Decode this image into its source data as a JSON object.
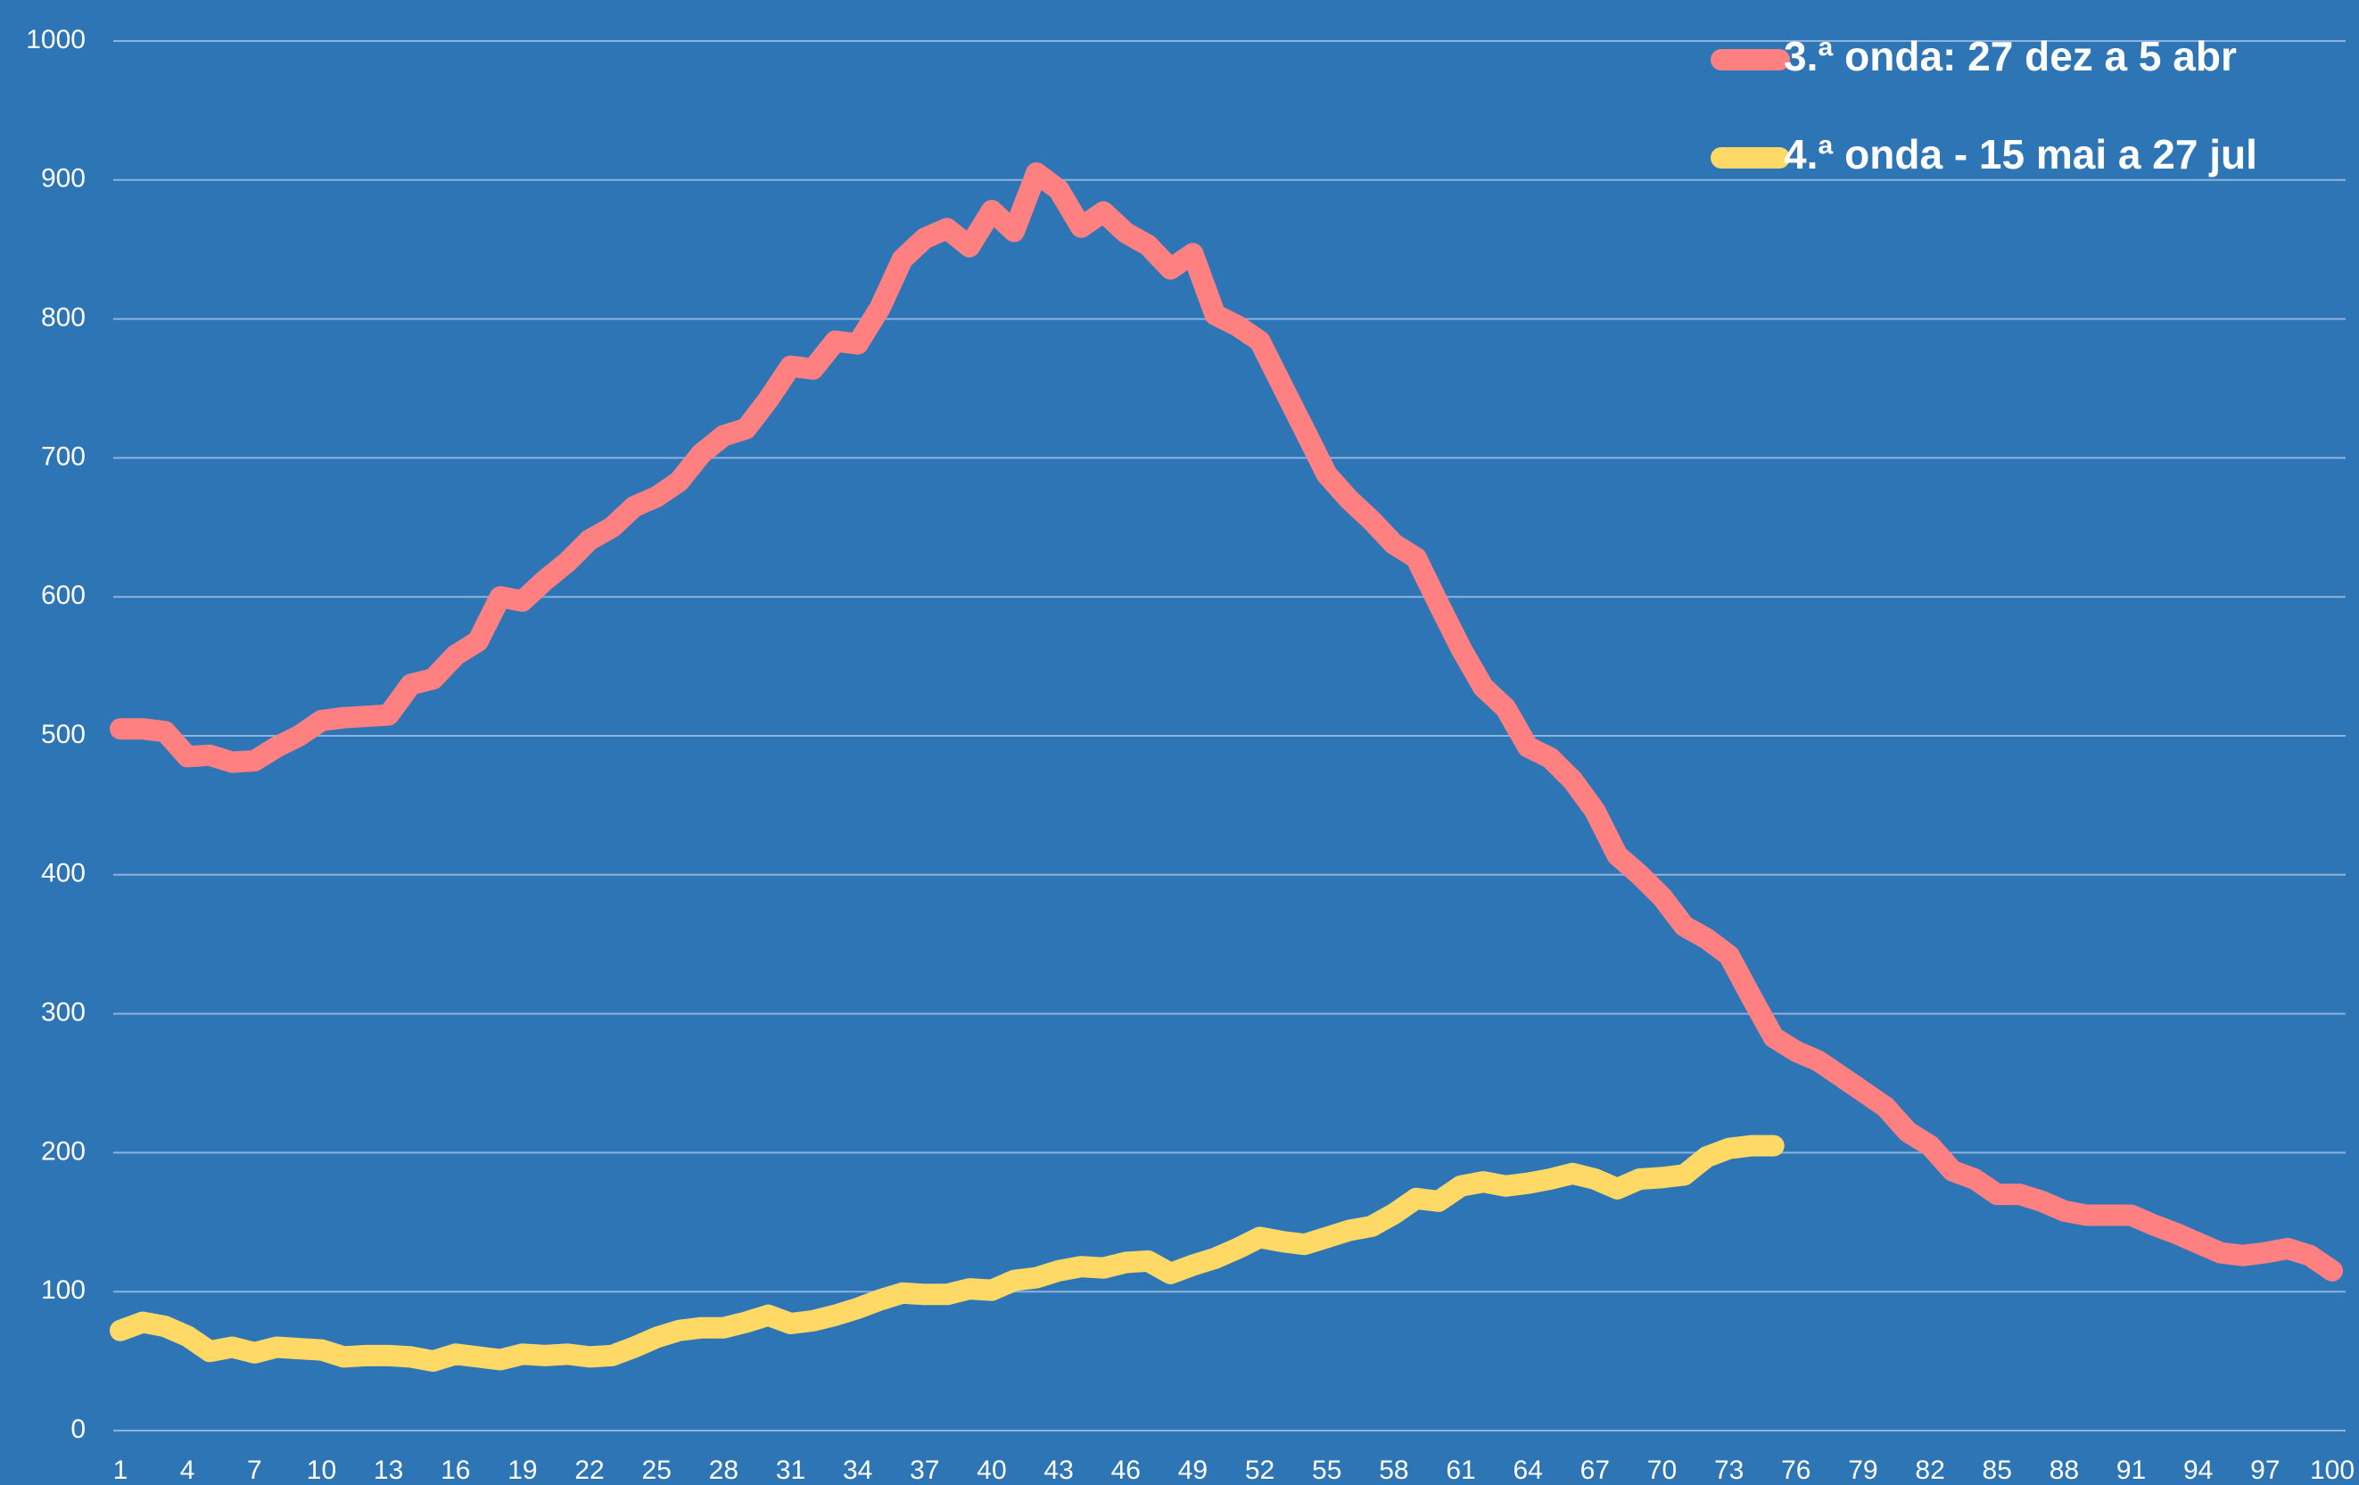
{
  "chart_data": {
    "type": "line",
    "xlim": [
      1,
      100
    ],
    "xticks": [
      1,
      4,
      7,
      10,
      13,
      16,
      19,
      22,
      25,
      28,
      31,
      34,
      37,
      40,
      43,
      46,
      49,
      52,
      55,
      58,
      61,
      64,
      67,
      70,
      73,
      76,
      79,
      82,
      85,
      88,
      91,
      94,
      97,
      100
    ],
    "ylim": [
      0,
      1000
    ],
    "yticks": [
      0,
      100,
      200,
      300,
      400,
      500,
      600,
      700,
      800,
      900,
      1000
    ],
    "grid": true,
    "legend": "top-right",
    "x": [
      1,
      2,
      3,
      4,
      5,
      6,
      7,
      8,
      9,
      10,
      11,
      12,
      13,
      14,
      15,
      16,
      17,
      18,
      19,
      20,
      21,
      22,
      23,
      24,
      25,
      26,
      27,
      28,
      29,
      30,
      31,
      32,
      33,
      34,
      35,
      36,
      37,
      38,
      39,
      40,
      41,
      42,
      43,
      44,
      45,
      46,
      47,
      48,
      49,
      50,
      51,
      52,
      53,
      54,
      55,
      56,
      57,
      58,
      59,
      60,
      61,
      62,
      63,
      64,
      65,
      66,
      67,
      68,
      69,
      70,
      71,
      72,
      73,
      74,
      75,
      76,
      77,
      78,
      79,
      80,
      81,
      82,
      83,
      84,
      85,
      86,
      87,
      88,
      89,
      90,
      91,
      92,
      93,
      94,
      95,
      96,
      97,
      98,
      99,
      100
    ],
    "series": [
      {
        "name": "3.ª onda: 27 dez a 5 abr",
        "color": "#ff8080",
        "values": [
          505,
          505,
          503,
          485,
          486,
          481,
          482,
          492,
          500,
          511,
          513,
          514,
          515,
          537,
          541,
          558,
          568,
          600,
          597,
          612,
          625,
          641,
          650,
          665,
          672,
          683,
          703,
          716,
          721,
          742,
          766,
          764,
          784,
          782,
          808,
          843,
          858,
          865,
          852,
          878,
          863,
          905,
          893,
          866,
          877,
          862,
          853,
          836,
          847,
          803,
          795,
          784,
          752,
          720,
          688,
          670,
          655,
          638,
          628,
          595,
          563,
          535,
          520,
          492,
          484,
          468,
          446,
          414,
          400,
          384,
          363,
          354,
          342,
          312,
          283,
          273,
          266,
          255,
          244,
          233,
          215,
          205,
          187,
          181,
          170,
          170,
          165,
          158,
          155,
          155,
          155,
          148,
          142,
          135,
          128,
          126,
          128,
          131,
          126,
          115
        ]
      },
      {
        "name": "4.ª onda - 15 mai a 27 jul",
        "color": "#ffd966",
        "values": [
          72,
          78,
          75,
          68,
          57,
          60,
          56,
          60,
          59,
          58,
          53,
          54,
          54,
          53,
          50,
          55,
          53,
          51,
          55,
          54,
          55,
          53,
          54,
          60,
          67,
          72,
          74,
          74,
          78,
          83,
          77,
          79,
          83,
          88,
          94,
          99,
          98,
          98,
          102,
          101,
          108,
          110,
          115,
          118,
          117,
          121,
          122,
          113,
          119,
          124,
          131,
          139,
          136,
          134,
          139,
          144,
          147,
          156,
          167,
          165,
          176,
          179,
          176,
          178,
          181,
          185,
          181,
          174,
          181,
          182,
          184,
          197,
          203,
          205,
          205,
          null,
          null,
          null,
          null,
          null,
          null,
          null,
          null,
          null,
          null,
          null,
          null,
          null,
          null,
          null,
          null,
          null,
          null,
          null,
          null,
          null,
          null,
          null,
          null,
          null
        ]
      }
    ]
  }
}
